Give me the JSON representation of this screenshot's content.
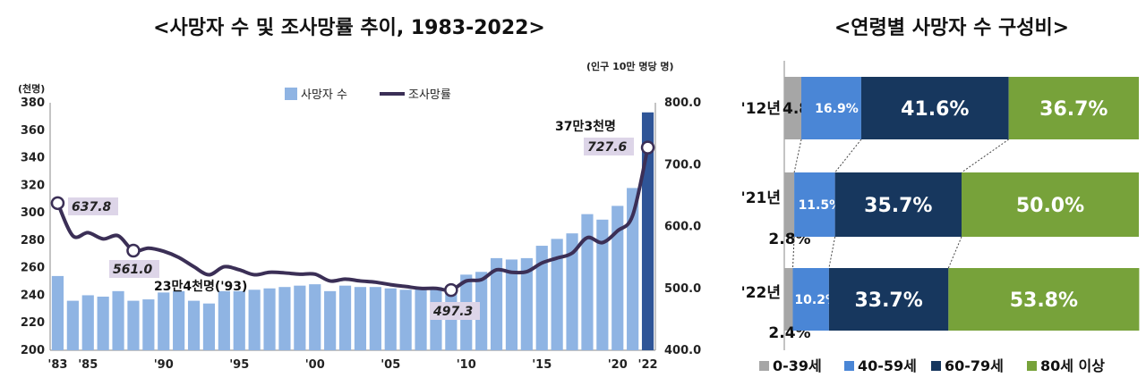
{
  "left": {
    "title": "<사망자 수 및 조사망률 추이, 1983-2022>",
    "left_unit": "(천명)",
    "right_unit": "(인구 10만 명당 명)",
    "legend": {
      "bar": "사망자 수",
      "line": "조사망률"
    },
    "annotations": {
      "a1983": "637.8",
      "a1988": "561.0",
      "a1993": "23만4천명('93)",
      "a2009": "497.3",
      "a2022_rate": "727.6",
      "a2022_count": "37만3천명"
    }
  },
  "right": {
    "title": "<연령별 사망자 수 구성비>",
    "legend": [
      "0-39세",
      "40-59세",
      "60-79세",
      "80세 이상"
    ]
  },
  "colors": {
    "bar": "#8fb4e3",
    "bar_last": "#2f5597",
    "line": "#3b2f56",
    "seg0": "#a6a6a6",
    "seg1": "#4a86d6",
    "seg2": "#17375e",
    "seg3": "#77a23a",
    "annbox": "#ddd5e8"
  },
  "chart_data": [
    {
      "type": "bar",
      "combo_line": true,
      "title": "<사망자 수 및 조사망률 추이, 1983-2022>",
      "x": [
        1983,
        1984,
        1985,
        1986,
        1987,
        1988,
        1989,
        1990,
        1991,
        1992,
        1993,
        1994,
        1995,
        1996,
        1997,
        1998,
        1999,
        2000,
        2001,
        2002,
        2003,
        2004,
        2005,
        2006,
        2007,
        2008,
        2009,
        2010,
        2011,
        2012,
        2013,
        2014,
        2015,
        2016,
        2017,
        2018,
        2019,
        2020,
        2021,
        2022
      ],
      "x_tick_labels": [
        "'83",
        "'85",
        "'90",
        "'95",
        "'00",
        "'05",
        "'10",
        "'15",
        "'20",
        "'22"
      ],
      "x_tick_years": [
        1983,
        1985,
        1990,
        1995,
        2000,
        2005,
        2010,
        2015,
        2020,
        2022
      ],
      "series": [
        {
          "name": "사망자 수",
          "axis": "left",
          "type": "bar",
          "values": [
            254,
            236,
            240,
            239,
            243,
            236,
            237,
            242,
            243,
            236,
            234,
            243,
            243,
            244,
            245,
            246,
            247,
            248,
            243,
            247,
            246,
            246,
            245,
            244,
            245,
            246,
            246,
            255,
            257,
            267,
            266,
            267,
            276,
            281,
            285,
            299,
            295,
            305,
            318,
            373
          ]
        },
        {
          "name": "조사망률",
          "axis": "right",
          "type": "line",
          "values": [
            637.8,
            585.0,
            590.0,
            580.0,
            585.0,
            561.0,
            565.0,
            560.0,
            550.0,
            535.0,
            522.0,
            535.0,
            530.0,
            522.0,
            526.0,
            525.0,
            523.0,
            523.0,
            512.0,
            515.0,
            512.0,
            510.0,
            506.0,
            503.0,
            500.0,
            500.0,
            497.3,
            512.0,
            514.0,
            530.0,
            526.0,
            527.0,
            541.0,
            549.0,
            557.0,
            582.0,
            574.0,
            593.0,
            618.0,
            727.6
          ]
        }
      ],
      "left_axis": {
        "label": "(천명)",
        "ylim": [
          200,
          380
        ],
        "ticks": [
          200,
          220,
          240,
          260,
          280,
          300,
          320,
          340,
          360,
          380
        ]
      },
      "right_axis": {
        "label": "(인구 10만 명당 명)",
        "ylim": [
          400,
          800
        ],
        "ticks": [
          "400.0",
          "500.0",
          "600.0",
          "700.0",
          "800.0"
        ]
      },
      "legend_position": "top-center"
    },
    {
      "type": "bar",
      "orientation": "horizontal",
      "stacked": true,
      "title": "<연령별 사망자 수 구성비>",
      "categories": [
        "'12년",
        "'21년",
        "'22년"
      ],
      "series": [
        {
          "name": "0-39세",
          "values": [
            4.8,
            2.8,
            2.4
          ],
          "labels": [
            "4.8%",
            "2.8%",
            "2.4%"
          ]
        },
        {
          "name": "40-59세",
          "values": [
            16.9,
            11.5,
            10.2
          ],
          "labels": [
            "16.9%",
            "11.5%",
            "10.2%"
          ]
        },
        {
          "name": "60-79세",
          "values": [
            41.6,
            35.7,
            33.7
          ],
          "labels": [
            "41.6%",
            "35.7%",
            "33.7%"
          ]
        },
        {
          "name": "80세 이상",
          "values": [
            36.7,
            50.0,
            53.8
          ],
          "labels": [
            "36.7%",
            "50.0%",
            "53.8%"
          ]
        }
      ],
      "legend_position": "bottom"
    }
  ]
}
